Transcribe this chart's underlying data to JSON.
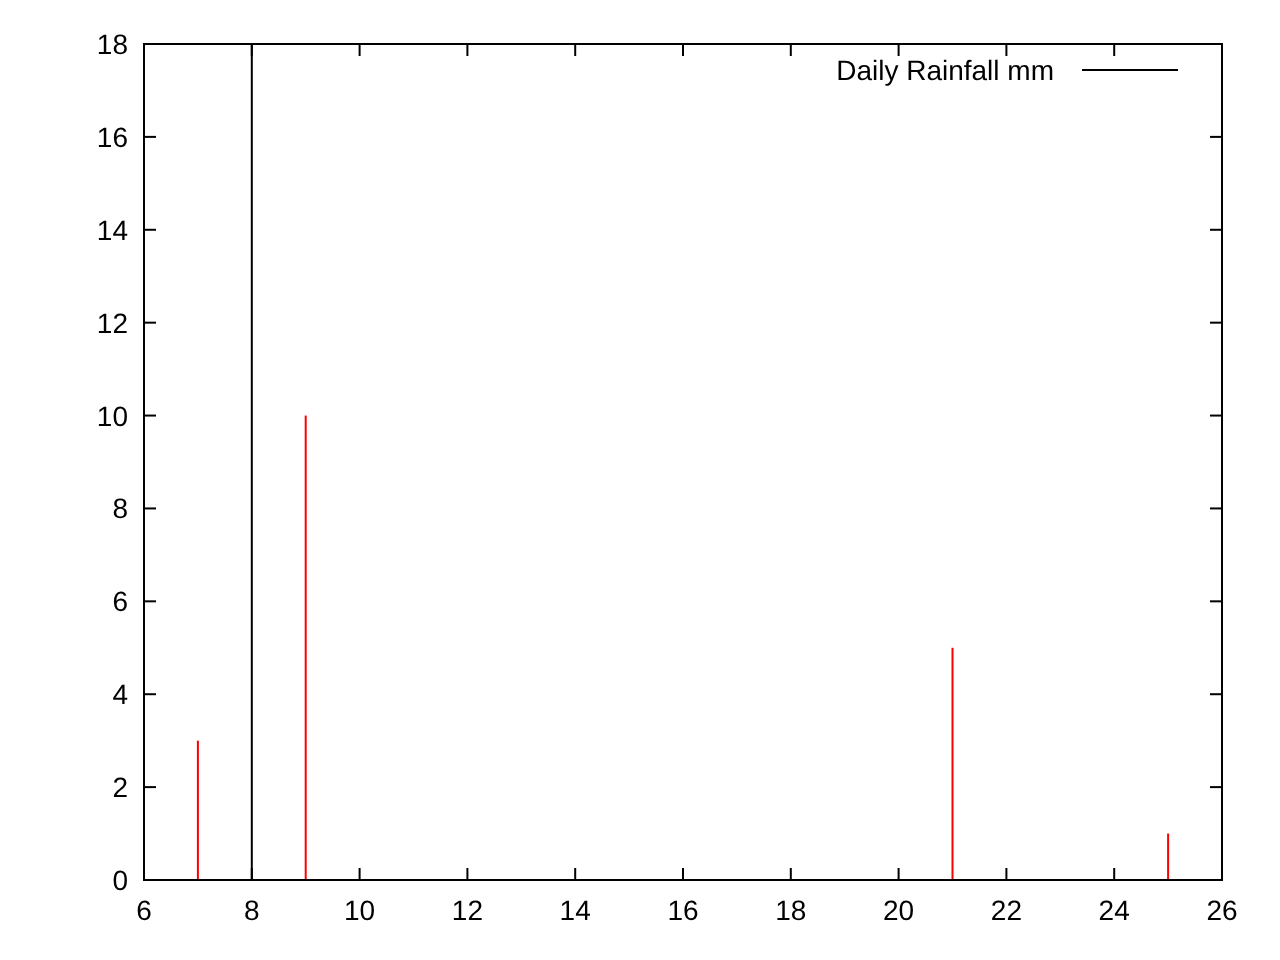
{
  "chart_data": {
    "type": "bar",
    "x": [
      7,
      8,
      9,
      21,
      25
    ],
    "series": [
      {
        "name": "Daily Rainfall mm",
        "color": "#000000",
        "colors": [
          "#ff0000",
          "#000000",
          "#ff0000",
          "#ff0000",
          "#ff0000"
        ],
        "values": [
          3,
          18,
          10,
          5,
          1
        ]
      }
    ],
    "xlim": [
      6,
      26
    ],
    "xticks": [
      6,
      8,
      10,
      12,
      14,
      16,
      18,
      20,
      22,
      24,
      26
    ],
    "ylim": [
      0,
      18
    ],
    "yticks": [
      0,
      2,
      4,
      6,
      8,
      10,
      12,
      14,
      16,
      18
    ],
    "legend": "top right"
  }
}
